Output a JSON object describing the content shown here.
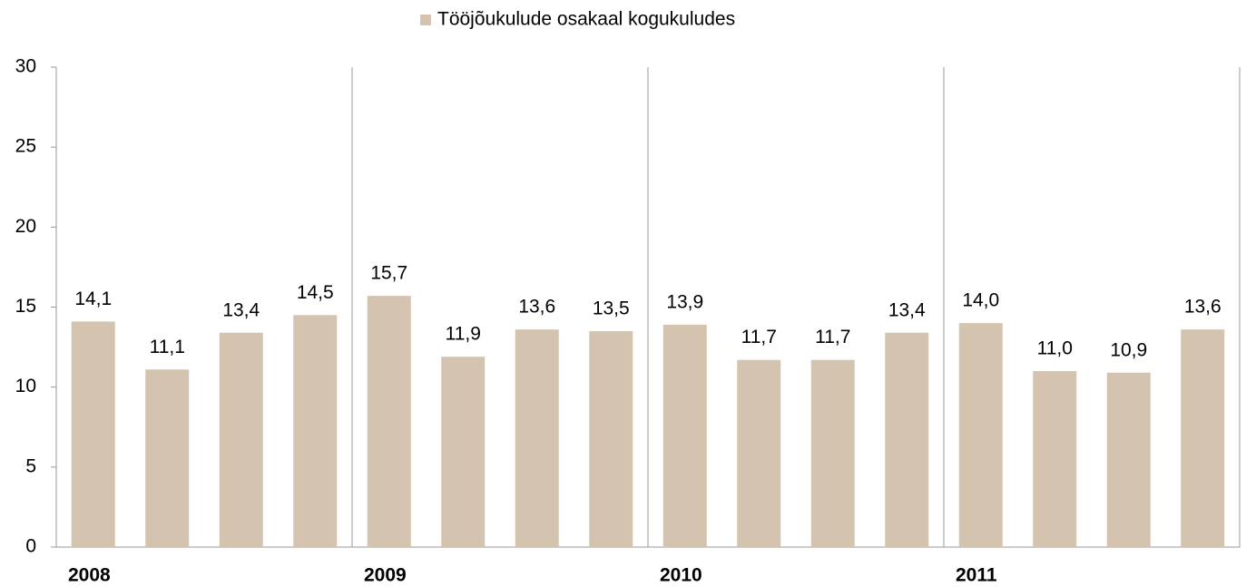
{
  "chart_data": {
    "type": "bar",
    "legend": "Tööjõukulude osakaal kogukuludes",
    "color": "#d4c3ae",
    "categories": [
      "2008",
      null,
      null,
      null,
      "2009",
      null,
      null,
      null,
      "2010",
      null,
      null,
      null,
      "2011",
      null,
      null,
      null
    ],
    "values": [
      14.1,
      11.1,
      13.4,
      14.5,
      15.7,
      11.9,
      13.6,
      13.5,
      13.9,
      11.7,
      11.7,
      13.4,
      14.0,
      11.0,
      10.9,
      13.6
    ],
    "value_labels": [
      "14,1",
      "11,1",
      "13,4",
      "14,5",
      "15,7",
      "11,9",
      "13,6",
      "13,5",
      "13,9",
      "11,7",
      "11,7",
      "13,4",
      "14,0",
      "11,0",
      "10,9",
      "13,6"
    ],
    "ylim": [
      0,
      30
    ],
    "yticks": [
      0,
      5,
      10,
      15,
      20,
      25,
      30
    ]
  }
}
